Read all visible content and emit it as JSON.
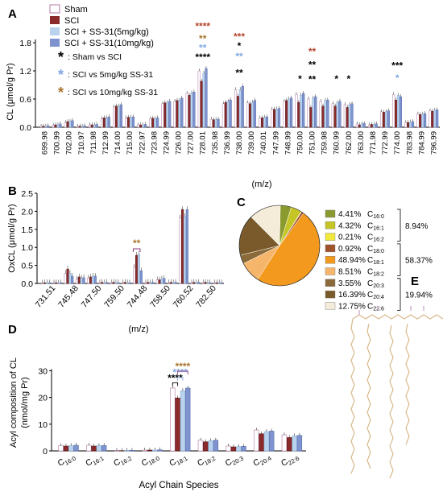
{
  "panel_labels": [
    "A",
    "B",
    "C",
    "D",
    "E"
  ],
  "colors": {
    "sham": "#ffffff",
    "sci": "#8b2a2a",
    "ss5": "#b9d3ee",
    "ss10": "#7f93cf",
    "sig_black": "#000000",
    "sig_blue": "#7fa7e0",
    "sig_brown": "#a8742c",
    "sig_purple": "#8e3c7d",
    "sig_red": "#b4452b"
  },
  "legend": {
    "groups": [
      "Sham",
      "SCI",
      "SCI + SS-31(5mg/kg)",
      "SCI + SS-31(10mg/kg)"
    ],
    "sig_notes": [
      {
        "symbol": "*",
        "text": ": Sham vs SCI",
        "color": "#000000"
      },
      {
        "symbol": "*",
        "text": ": SCI vs 5mg/kg SS-31",
        "color": "#7fa7e0"
      },
      {
        "symbol": "*",
        "text": ": SCI vs 10mg/kg SS-31",
        "color": "#a8742c"
      }
    ]
  },
  "chart_data": [
    {
      "panel": "A",
      "type": "bar",
      "xlabel": "(m/z)",
      "ylabel": "CL (μmol/g Pr)",
      "ylim": [
        0,
        1.8
      ],
      "yticks": [
        "0.0",
        "0.6",
        "1.2",
        "1.8"
      ],
      "categories": [
        "699.98",
        "700.99",
        "702.00",
        "710.97",
        "711.98",
        "712.99",
        "714.00",
        "715.00",
        "722.97",
        "723.98",
        "724.99",
        "726.00",
        "727.00",
        "728.01",
        "735.98",
        "736.99",
        "738.00",
        "739.00",
        "740.01",
        "747.99",
        "748.99",
        "750.00",
        "751.00",
        "759.98",
        "760.99",
        "762.00",
        "763.00",
        "771.98",
        "772.99",
        "774.00",
        "783.98",
        "784.99",
        "796.99"
      ],
      "series": [
        {
          "name": "Sham",
          "values": [
            0.02,
            0.04,
            0.1,
            0.02,
            0.05,
            0.18,
            0.43,
            0.2,
            0.05,
            0.18,
            0.5,
            0.55,
            0.72,
            1.2,
            0.17,
            0.5,
            0.8,
            0.52,
            0.2,
            0.38,
            0.55,
            0.7,
            0.6,
            0.55,
            0.5,
            0.48,
            0.07,
            0.05,
            0.33,
            0.7,
            0.1,
            0.28,
            0.35
          ]
        },
        {
          "name": "SCI",
          "values": [
            0.02,
            0.05,
            0.12,
            0.02,
            0.05,
            0.2,
            0.45,
            0.21,
            0.05,
            0.19,
            0.52,
            0.57,
            0.68,
            0.98,
            0.16,
            0.53,
            0.66,
            0.5,
            0.2,
            0.38,
            0.57,
            0.53,
            0.42,
            0.45,
            0.45,
            0.42,
            0.05,
            0.06,
            0.32,
            0.58,
            0.1,
            0.27,
            0.34
          ]
        },
        {
          "name": "SCI + SS-31(5mg/kg)",
          "values": [
            0.02,
            0.05,
            0.12,
            0.02,
            0.05,
            0.2,
            0.45,
            0.21,
            0.05,
            0.18,
            0.52,
            0.57,
            0.73,
            1.15,
            0.16,
            0.55,
            0.8,
            0.53,
            0.21,
            0.39,
            0.6,
            0.68,
            0.62,
            0.57,
            0.52,
            0.48,
            0.07,
            0.06,
            0.33,
            0.68,
            0.11,
            0.28,
            0.36
          ]
        },
        {
          "name": "SCI + SS-31(10mg/kg)",
          "values": [
            0.03,
            0.07,
            0.14,
            0.03,
            0.06,
            0.22,
            0.48,
            0.22,
            0.06,
            0.2,
            0.55,
            0.62,
            0.75,
            1.25,
            0.17,
            0.58,
            0.87,
            0.57,
            0.22,
            0.4,
            0.62,
            0.72,
            0.65,
            0.58,
            0.55,
            0.5,
            0.08,
            0.07,
            0.35,
            0.65,
            0.12,
            0.29,
            0.37
          ]
        }
      ],
      "significance": [
        {
          "category": "728.01",
          "stars": "****",
          "color": "#000000",
          "y": 1.42
        },
        {
          "category": "728.01",
          "stars": "**",
          "color": "#7fa7e0",
          "y": 1.62
        },
        {
          "category": "728.01",
          "stars": "**",
          "color": "#a8742c",
          "y": 1.82
        },
        {
          "category": "728.01",
          "stars": "****",
          "color": "#b4452b",
          "y": 2.08
        },
        {
          "category": "738.00",
          "stars": "**",
          "color": "#000000",
          "y": 1.09
        },
        {
          "category": "738.00",
          "stars": "**",
          "color": "#7fa7e0",
          "y": 1.44
        },
        {
          "category": "738.00",
          "stars": "*",
          "color": "#000000",
          "y": 1.66
        },
        {
          "category": "738.00",
          "stars": "***",
          "color": "#b4452b",
          "y": 1.86
        },
        {
          "category": "750.00",
          "stars": "*",
          "color": "#000000",
          "y": 0.96
        },
        {
          "category": "751.00",
          "stars": "**",
          "color": "#000000",
          "y": 0.95
        },
        {
          "category": "751.00",
          "stars": "**",
          "color": "#000000",
          "y": 1.26
        },
        {
          "category": "751.00",
          "stars": "**",
          "color": "#b4452b",
          "y": 1.54
        },
        {
          "category": "760.99",
          "stars": "*",
          "color": "#000000",
          "y": 0.96
        },
        {
          "category": "762.00",
          "stars": "*",
          "color": "#000000",
          "y": 0.96
        },
        {
          "category": "774.00",
          "stars": "***",
          "color": "#000000",
          "y": 1.24
        },
        {
          "category": "774.00",
          "stars": "*",
          "color": "#7fa7e0",
          "y": 0.98
        }
      ]
    },
    {
      "panel": "B",
      "type": "bar",
      "xlabel": "(m/z)",
      "ylabel": "OxCL (μmol/g Pr)",
      "ylim": [
        0,
        2.5
      ],
      "yticks": [
        "0.0",
        "0.5",
        "1.0",
        "1.5",
        "2.0",
        "2.5"
      ],
      "categories": [
        "731.51",
        "745.48",
        "747.50",
        "759.50",
        "744.48",
        "758.50",
        "760.52",
        "782.50"
      ],
      "extra_points": 15,
      "series_note": "bars plotted at 16 evenly spaced positions; labelled positions shown",
      "positions": [
        {
          "label": "731.51",
          "values": [
            0.01,
            0.02,
            0.02,
            0.02
          ]
        },
        {
          "label": "",
          "values": [
            0.01,
            0.02,
            0.01,
            0.02
          ]
        },
        {
          "label": "745.48",
          "values": [
            0.28,
            0.4,
            0.28,
            0.2
          ]
        },
        {
          "label": "",
          "values": [
            0.12,
            0.18,
            0.14,
            0.16
          ]
        },
        {
          "label": "747.50",
          "values": [
            0.15,
            0.18,
            0.2,
            0.2
          ]
        },
        {
          "label": "",
          "values": [
            0.02,
            0.03,
            0.02,
            0.03
          ]
        },
        {
          "label": "759.50",
          "values": [
            0.02,
            0.03,
            0.02,
            0.02
          ]
        },
        {
          "label": "",
          "values": [
            0.02,
            0.03,
            0.02,
            0.02
          ]
        },
        {
          "label": "744.48",
          "values": [
            0.45,
            0.78,
            0.8,
            0.35
          ]
        },
        {
          "label": "",
          "values": [
            0.02,
            0.03,
            0.02,
            0.03
          ]
        },
        {
          "label": "758.50",
          "values": [
            0.1,
            0.1,
            0.12,
            0.14
          ]
        },
        {
          "label": "",
          "values": [
            0.02,
            0.03,
            0.02,
            0.03
          ]
        },
        {
          "label": "760.52",
          "values": [
            1.82,
            2.05,
            1.85,
            2.05
          ]
        },
        {
          "label": "",
          "values": [
            0.02,
            0.03,
            0.02,
            0.03
          ]
        },
        {
          "label": "782.50",
          "values": [
            0.02,
            0.03,
            0.02,
            0.02
          ]
        },
        {
          "label": "",
          "values": [
            0.02,
            0.02,
            0.02,
            0.02
          ]
        }
      ],
      "significance": [
        {
          "label": "744.48",
          "stars": "**",
          "color": "#a8742c"
        }
      ]
    },
    {
      "panel": "C",
      "type": "pie",
      "slices": [
        {
          "pct": "4.41%",
          "label": "C",
          "sub": "16:0",
          "value": 4.41,
          "color": "#8a9a2e"
        },
        {
          "pct": "4.32%",
          "label": "C",
          "sub": "16:1",
          "value": 4.32,
          "color": "#c5c526"
        },
        {
          "pct": "0.21%",
          "label": "C",
          "sub": "16:2",
          "value": 0.21,
          "color": "#f2e83b"
        },
        {
          "pct": "0.92%",
          "label": "C",
          "sub": "18:0",
          "value": 0.92,
          "color": "#a0522d"
        },
        {
          "pct": "48.94%",
          "label": "C",
          "sub": "18:1",
          "value": 48.94,
          "color": "#f39a1e"
        },
        {
          "pct": "8.51%",
          "label": "C",
          "sub": "18:2",
          "value": 8.51,
          "color": "#f5b56b"
        },
        {
          "pct": "3.55%",
          "label": "C",
          "sub": "20:3",
          "value": 3.55,
          "color": "#8b6a3a"
        },
        {
          "pct": "16.39%",
          "label": "C",
          "sub": "20:4",
          "value": 16.39,
          "color": "#7a5a2a"
        },
        {
          "pct": "12.75%",
          "label": "C",
          "sub": "22:6",
          "value": 12.75,
          "color": "#f4ecd8"
        }
      ],
      "groups": [
        {
          "text": "8.94%"
        },
        {
          "text": "58.37%"
        },
        {
          "text": "19.94%"
        }
      ]
    },
    {
      "panel": "D",
      "type": "bar",
      "xlabel": "Acyl Chain Species",
      "ylabel": "Acyl composition of CL (nmol/mg Pr)",
      "ylabel_lines": [
        "Acyl composition of CL",
        "(nmol/mg Pr)"
      ],
      "ylim": [
        0,
        30
      ],
      "yticks": [
        "0",
        "10",
        "20",
        "30"
      ],
      "categories": [
        {
          "base": "C",
          "sub": "16:0"
        },
        {
          "base": "C",
          "sub": "16:1"
        },
        {
          "base": "C",
          "sub": "16:2"
        },
        {
          "base": "C",
          "sub": "18:0"
        },
        {
          "base": "C",
          "sub": "18:1"
        },
        {
          "base": "C",
          "sub": "18:2"
        },
        {
          "base": "C",
          "sub": "20:3"
        },
        {
          "base": "C",
          "sub": "20:4"
        },
        {
          "base": "C",
          "sub": "22:6"
        }
      ],
      "series": [
        {
          "name": "Sham",
          "values": [
            2.0,
            2.1,
            0.2,
            0.3,
            23.5,
            4.0,
            1.8,
            7.8,
            6.0
          ]
        },
        {
          "name": "SCI",
          "values": [
            1.8,
            1.8,
            0.1,
            0.3,
            19.8,
            3.4,
            1.5,
            6.4,
            5.0
          ]
        },
        {
          "name": "SCI + SS-31(5mg/kg)",
          "values": [
            2.0,
            2.0,
            0.2,
            0.3,
            22.5,
            3.8,
            1.6,
            7.2,
            5.6
          ]
        },
        {
          "name": "SCI + SS-31(10mg/kg)",
          "values": [
            2.1,
            2.0,
            0.2,
            0.4,
            23.5,
            4.0,
            1.7,
            7.4,
            5.8
          ]
        }
      ],
      "significance": [
        {
          "stars": "****",
          "color": "#000000"
        },
        {
          "stars": "****",
          "color": "#7fa7e0"
        },
        {
          "stars": "****",
          "color": "#a8742c"
        }
      ]
    }
  ]
}
